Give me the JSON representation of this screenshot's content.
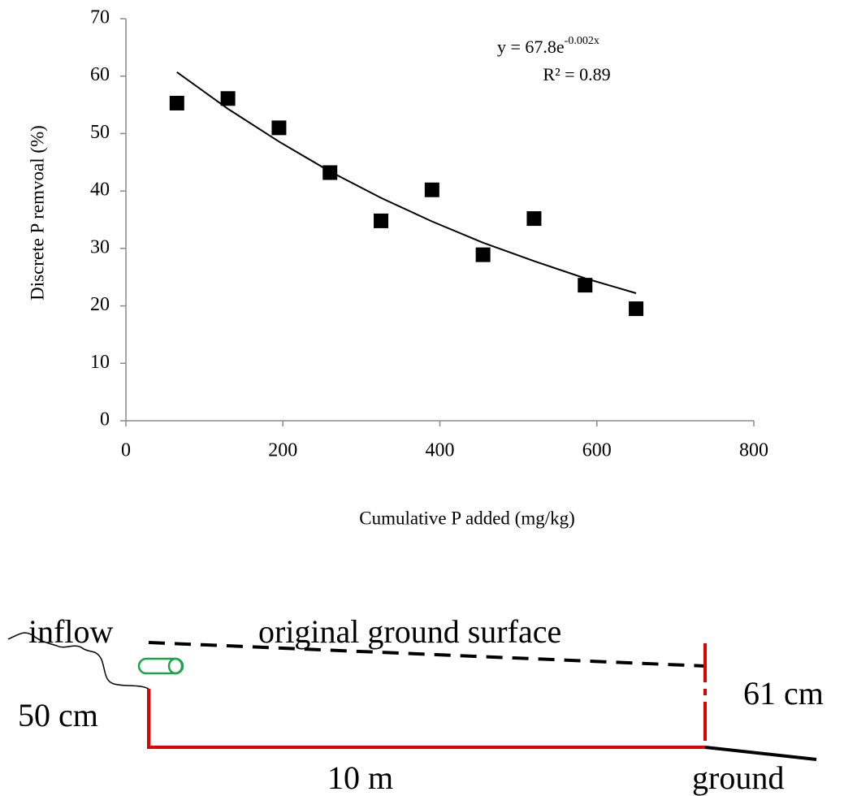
{
  "chart_data": {
    "type": "scatter",
    "x_label": "Cumulative P added (mg/kg)",
    "y_label": "Discrete P remvoal (%)",
    "equation": "y = 67.8e",
    "equation_exponent": "-0.002x",
    "r_squared": "R² = 0.89",
    "x": [
      65,
      130,
      195,
      260,
      325,
      390,
      455,
      520,
      585,
      650
    ],
    "values": [
      55.3,
      56.1,
      51,
      43.2,
      34.8,
      40.2,
      28.9,
      35.2,
      23.6,
      19.5
    ],
    "color": "#000000",
    "trendline": {
      "x": [
        65,
        130,
        195,
        260,
        325,
        390,
        455,
        520,
        585,
        650
      ],
      "values": [
        60.7,
        54.3,
        48.6,
        43.4,
        38.8,
        34.7,
        31.0,
        27.8,
        24.8,
        22.2
      ],
      "color": "#000000"
    },
    "xlim": [
      0,
      800
    ],
    "xticks": [
      0,
      200,
      400,
      600,
      800
    ],
    "ylim": [
      0,
      70
    ],
    "yticks": [
      0,
      10,
      20,
      30,
      40,
      50,
      60,
      70
    ],
    "grid": false
  },
  "diagram": {
    "labels": {
      "inflow": "inflow",
      "surface": "original ground surface",
      "depth_left": "50 cm",
      "depth_right": "61 cm",
      "length": "10 m",
      "ground": "ground"
    }
  }
}
